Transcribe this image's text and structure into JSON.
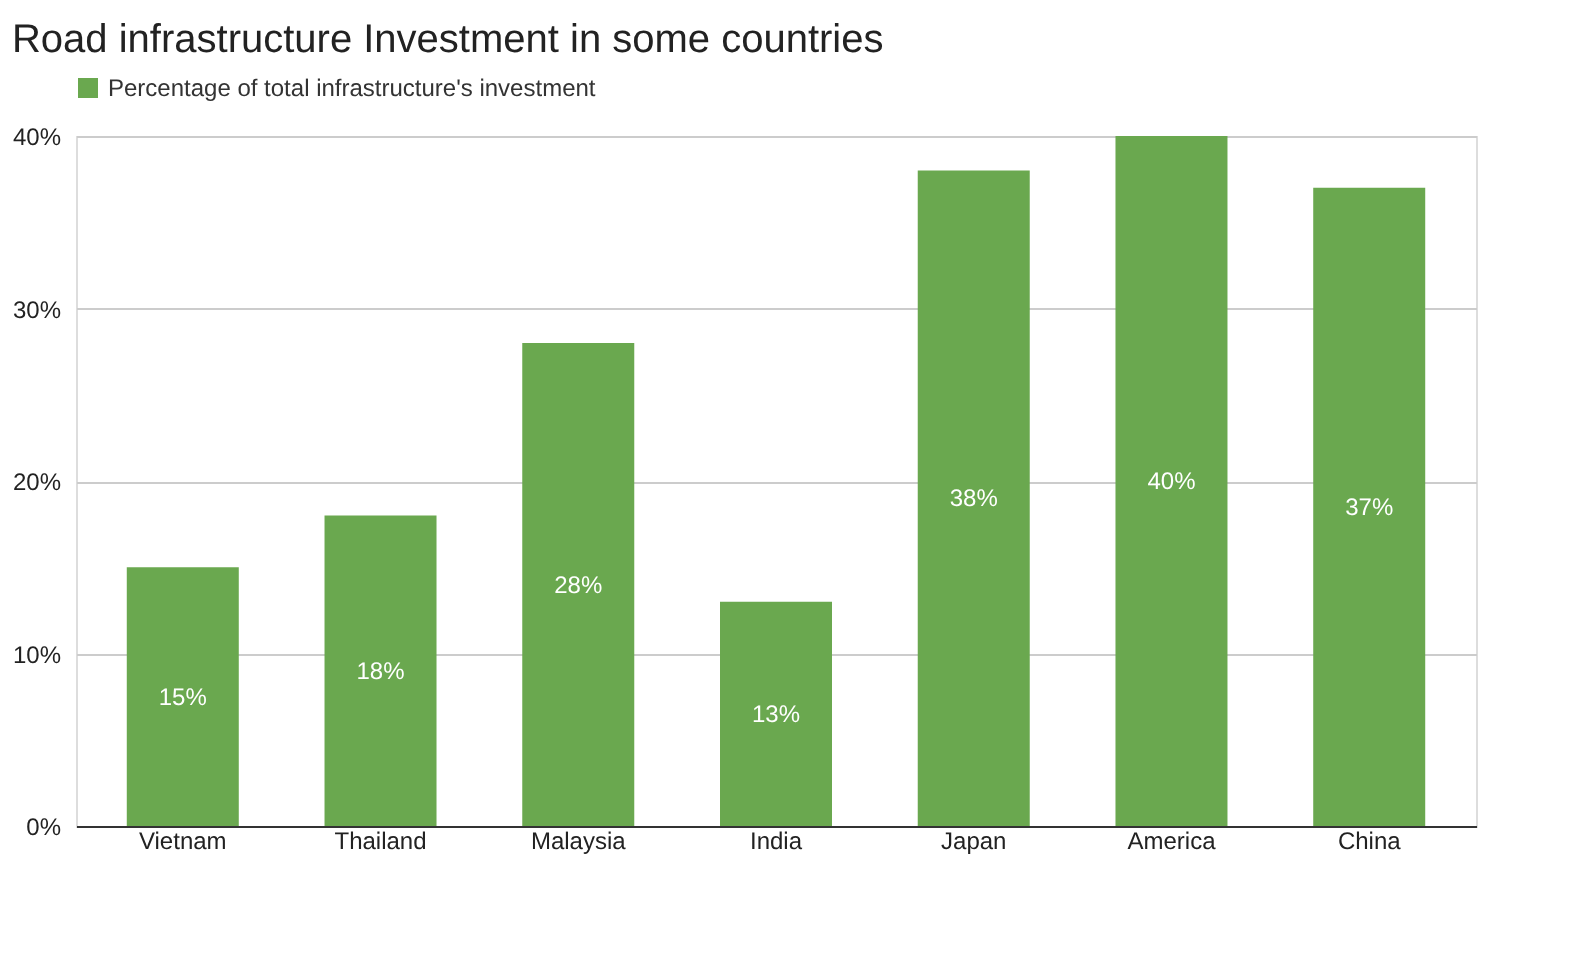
{
  "chart_data": {
    "type": "bar",
    "title": "Road infrastructure Investment in some countries",
    "categories": [
      "Vietnam",
      "Thailand",
      "Malaysia",
      "India",
      "Japan",
      "America",
      "China"
    ],
    "series": [
      {
        "name": "Percentage of total infrastructure's investment",
        "color": "#6aa84f",
        "values": [
          15,
          18,
          28,
          13,
          38,
          40,
          37
        ],
        "value_labels": [
          "15%",
          "18%",
          "28%",
          "13%",
          "38%",
          "40%",
          "37%"
        ]
      }
    ],
    "ylim": [
      0,
      40
    ],
    "yticks": [
      {
        "value": 0,
        "label": "0%"
      },
      {
        "value": 10,
        "label": "10%"
      },
      {
        "value": 20,
        "label": "20%"
      },
      {
        "value": 30,
        "label": "30%"
      },
      {
        "value": 40,
        "label": "40%"
      }
    ],
    "grid": "y",
    "legend": "top"
  }
}
